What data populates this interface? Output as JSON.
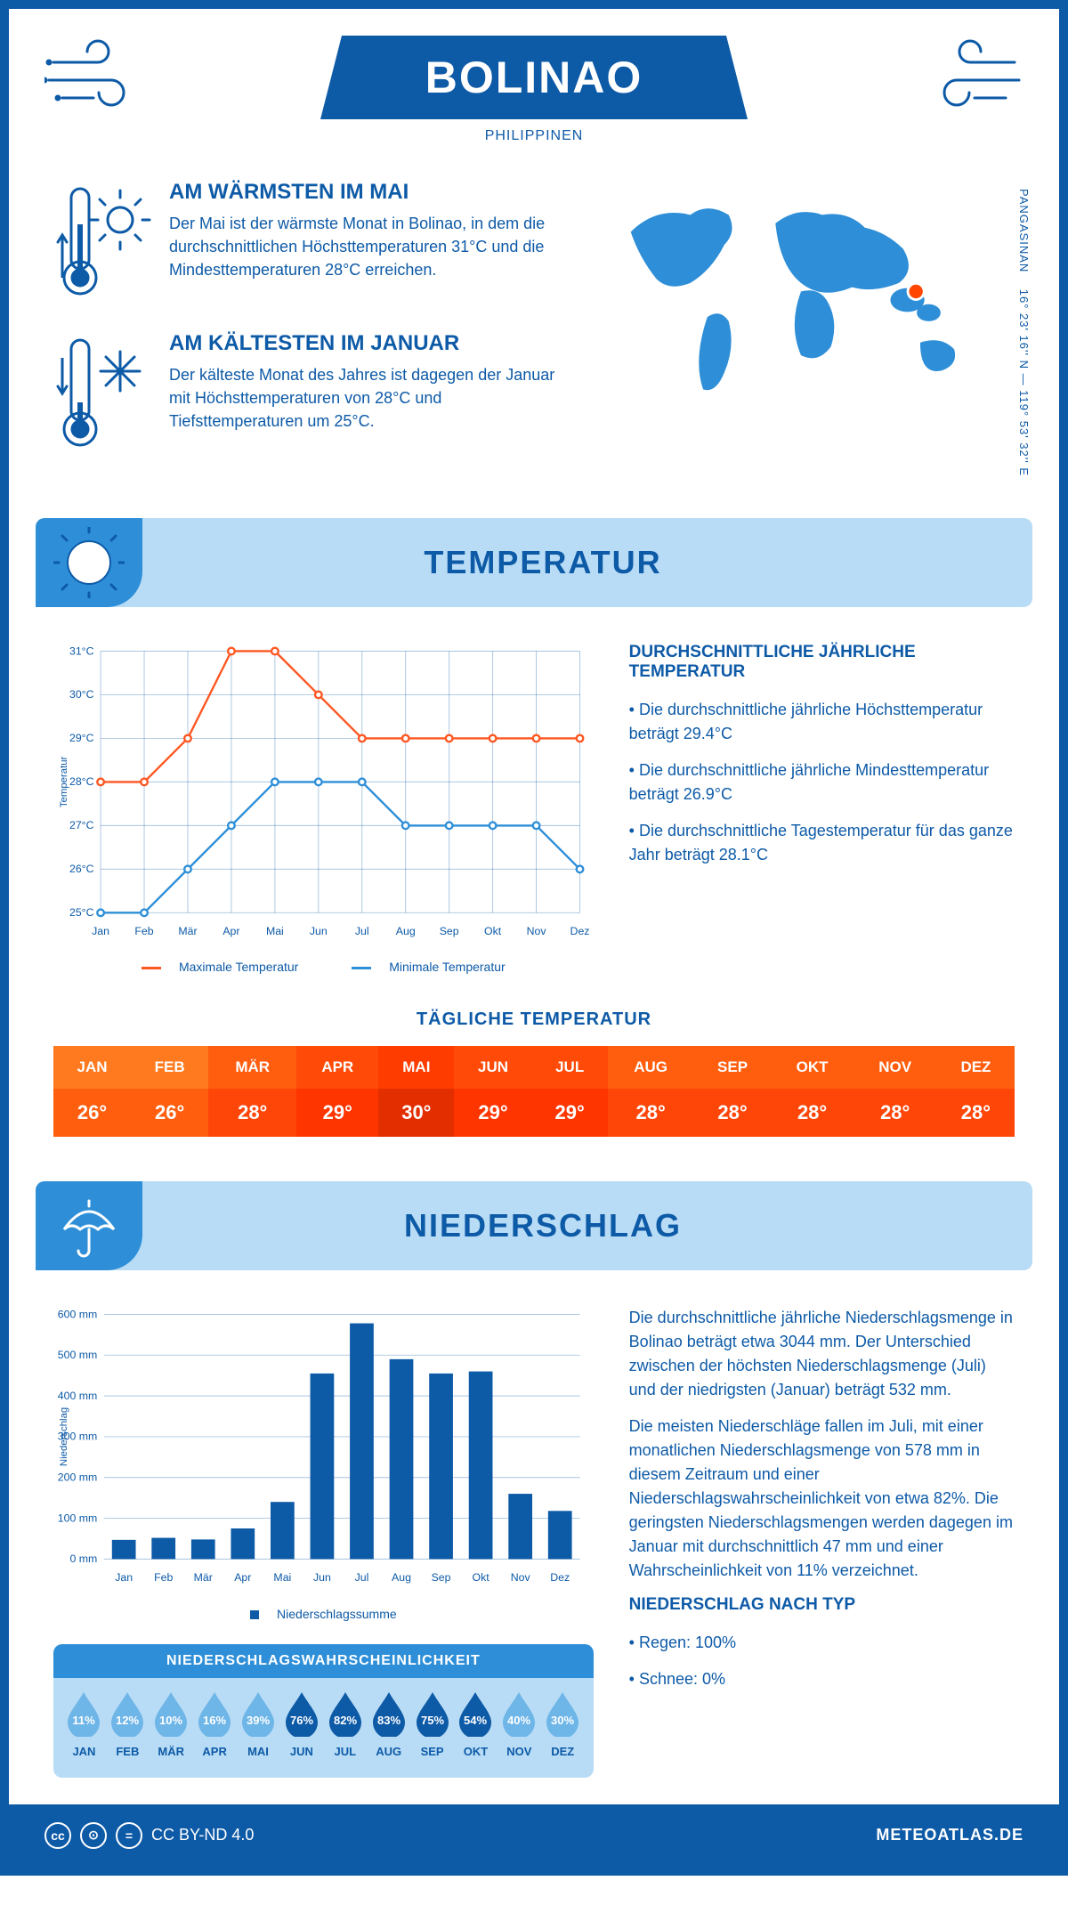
{
  "header": {
    "city": "BOLINAO",
    "country": "PHILIPPINEN"
  },
  "coords": {
    "lat": "16° 23' 16'' N",
    "lon": "119° 53' 32'' E",
    "region": "PANGASINAN"
  },
  "colors": {
    "primary": "#0d5aa7",
    "light_blue": "#b8dcf5",
    "mid_blue": "#2e8fd8",
    "max_line": "#ff5722",
    "min_line": "#2e8fd8",
    "bar": "#0d5aa7",
    "drop_dark": "#0d5aa7",
    "drop_light": "#6eb5e8"
  },
  "facts": {
    "warm": {
      "title": "AM WÄRMSTEN IM MAI",
      "text": "Der Mai ist der wärmste Monat in Bolinao, in dem die durchschnittlichen Höchsttemperaturen 31°C und die Mindesttemperaturen 28°C erreichen."
    },
    "cold": {
      "title": "AM KÄLTESTEN IM JANUAR",
      "text": "Der kälteste Monat des Jahres ist dagegen der Januar mit Höchsttemperaturen von 28°C und Tiefsttemperaturen um 25°C."
    }
  },
  "temperature_section": {
    "title": "TEMPERATUR",
    "chart": {
      "type": "line",
      "months": [
        "Jan",
        "Feb",
        "Mär",
        "Apr",
        "Mai",
        "Jun",
        "Jul",
        "Aug",
        "Sep",
        "Okt",
        "Nov",
        "Dez"
      ],
      "max": [
        28,
        28,
        29,
        31,
        31,
        30,
        29,
        29,
        29,
        29,
        29,
        29
      ],
      "min": [
        25,
        25,
        26,
        27,
        28,
        28,
        28,
        27,
        27,
        27,
        27,
        26
      ],
      "ylim": [
        25,
        31
      ],
      "yticks": [
        "25°C",
        "26°C",
        "27°C",
        "28°C",
        "29°C",
        "30°C",
        "31°C"
      ],
      "ylabel": "Temperatur",
      "legend_max": "Maximale Temperatur",
      "legend_min": "Minimale Temperatur"
    },
    "side": {
      "title": "DURCHSCHNITTLICHE JÄHRLICHE TEMPERATUR",
      "b1": "• Die durchschnittliche jährliche Höchsttemperatur beträgt 29.4°C",
      "b2": "• Die durchschnittliche jährliche Mindesttemperatur beträgt 26.9°C",
      "b3": "• Die durchschnittliche Tagestemperatur für das ganze Jahr beträgt 28.1°C"
    },
    "daily": {
      "title": "TÄGLICHE TEMPERATUR",
      "months": [
        "JAN",
        "FEB",
        "MÄR",
        "APR",
        "MAI",
        "JUN",
        "JUL",
        "AUG",
        "SEP",
        "OKT",
        "NOV",
        "DEZ"
      ],
      "values": [
        "26°",
        "26°",
        "28°",
        "29°",
        "30°",
        "29°",
        "29°",
        "28°",
        "28°",
        "28°",
        "28°",
        "28°"
      ],
      "head_colors": [
        "#ff7a1f",
        "#ff7a1f",
        "#ff5e0f",
        "#ff4b07",
        "#ff3c00",
        "#ff4b07",
        "#ff4b07",
        "#ff5e0f",
        "#ff5e0f",
        "#ff5e0f",
        "#ff5e0f",
        "#ff5e0f"
      ],
      "val_colors": [
        "#ff5e0f",
        "#ff5e0f",
        "#ff4609",
        "#ff3500",
        "#e32e00",
        "#ff3500",
        "#ff3500",
        "#ff4609",
        "#ff4609",
        "#ff4609",
        "#ff4609",
        "#ff4609"
      ]
    }
  },
  "precip_section": {
    "title": "NIEDERSCHLAG",
    "chart": {
      "type": "bar",
      "months": [
        "Jan",
        "Feb",
        "Mär",
        "Apr",
        "Mai",
        "Jun",
        "Jul",
        "Aug",
        "Sep",
        "Okt",
        "Nov",
        "Dez"
      ],
      "values": [
        47,
        52,
        48,
        75,
        140,
        455,
        578,
        490,
        455,
        460,
        160,
        118
      ],
      "ylim": [
        0,
        600
      ],
      "ytick_step": 100,
      "ylabel": "Niederschlag",
      "ytick_suffix": " mm",
      "legend": "Niederschlagssumme"
    },
    "prob": {
      "title": "NIEDERSCHLAGSWAHRSCHEINLICHKEIT",
      "months": [
        "JAN",
        "FEB",
        "MÄR",
        "APR",
        "MAI",
        "JUN",
        "JUL",
        "AUG",
        "SEP",
        "OKT",
        "NOV",
        "DEZ"
      ],
      "values": [
        11,
        12,
        10,
        16,
        39,
        76,
        82,
        83,
        75,
        54,
        40,
        30
      ]
    },
    "para1": "Die durchschnittliche jährliche Niederschlagsmenge in Bolinao beträgt etwa 3044 mm. Der Unterschied zwischen der höchsten Niederschlagsmenge (Juli) und der niedrigsten (Januar) beträgt 532 mm.",
    "para2": "Die meisten Niederschläge fallen im Juli, mit einer monatlichen Niederschlagsmenge von 578 mm in diesem Zeitraum und einer Niederschlagswahrscheinlichkeit von etwa 82%. Die geringsten Niederschlagsmengen werden dagegen im Januar mit durchschnittlich 47 mm und einer Wahrscheinlichkeit von 11% verzeichnet.",
    "type_title": "NIEDERSCHLAG NACH TYP",
    "type1": "• Regen: 100%",
    "type2": "• Schnee: 0%"
  },
  "footer": {
    "license": "CC BY-ND 4.0",
    "site": "METEOATLAS.DE"
  }
}
